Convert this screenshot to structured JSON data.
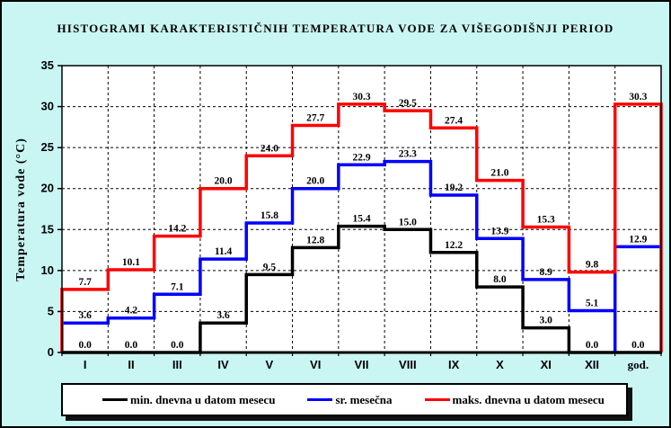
{
  "title": "HISTOGRAMI KARAKTERISTIČNIH TEMPERATURA VODE ZA VIŠEGODIŠNJI PERIOD",
  "colors": {
    "background": "#C9F5F2",
    "plot_background": "#FFFFFF",
    "grid": "#000000",
    "min_series": "#000000",
    "mean_series": "#0000FF",
    "max_series": "#FF0000"
  },
  "chart_data": {
    "type": "line",
    "subtype": "step-histogram",
    "title": "HISTOGRAMI KARAKTERISTIČNIH TEMPERATURA VODE ZA VIŠEGODIŠNJI PERIOD",
    "xlabel": "",
    "ylabel": "Temperatura vode (°C)",
    "ylim": [
      0,
      35
    ],
    "ytick_step": 5,
    "grid": true,
    "legend_position": "bottom",
    "categories": [
      "I",
      "II",
      "III",
      "IV",
      "V",
      "VI",
      "VII",
      "VIII",
      "IX",
      "X",
      "XI",
      "XII",
      "god."
    ],
    "series": [
      {
        "name": "min. dnevna u datom mesecu",
        "color": "#000000",
        "values": [
          0.0,
          0.0,
          0.0,
          3.6,
          9.5,
          12.8,
          15.4,
          15.0,
          12.2,
          8.0,
          3.0,
          0.0,
          0.0
        ],
        "start_at_zero": false,
        "end_at_zero": true,
        "zero_dip_before_last": false
      },
      {
        "name": "sr. mesečna",
        "color": "#0000FF",
        "values": [
          3.6,
          4.2,
          7.1,
          11.4,
          15.8,
          20.0,
          22.9,
          23.3,
          19.2,
          13.9,
          8.9,
          5.1,
          12.9
        ],
        "start_at_zero": false,
        "end_at_zero": false,
        "zero_dip_before_last": true
      },
      {
        "name": "maks. dnevna u datom mesecu",
        "color": "#FF0000",
        "values": [
          7.7,
          10.1,
          14.2,
          20.0,
          24.0,
          27.7,
          30.3,
          29.5,
          27.4,
          21.0,
          15.3,
          9.8,
          30.3
        ],
        "start_at_zero": true,
        "end_at_zero": true,
        "zero_dip_before_last": false
      }
    ]
  }
}
